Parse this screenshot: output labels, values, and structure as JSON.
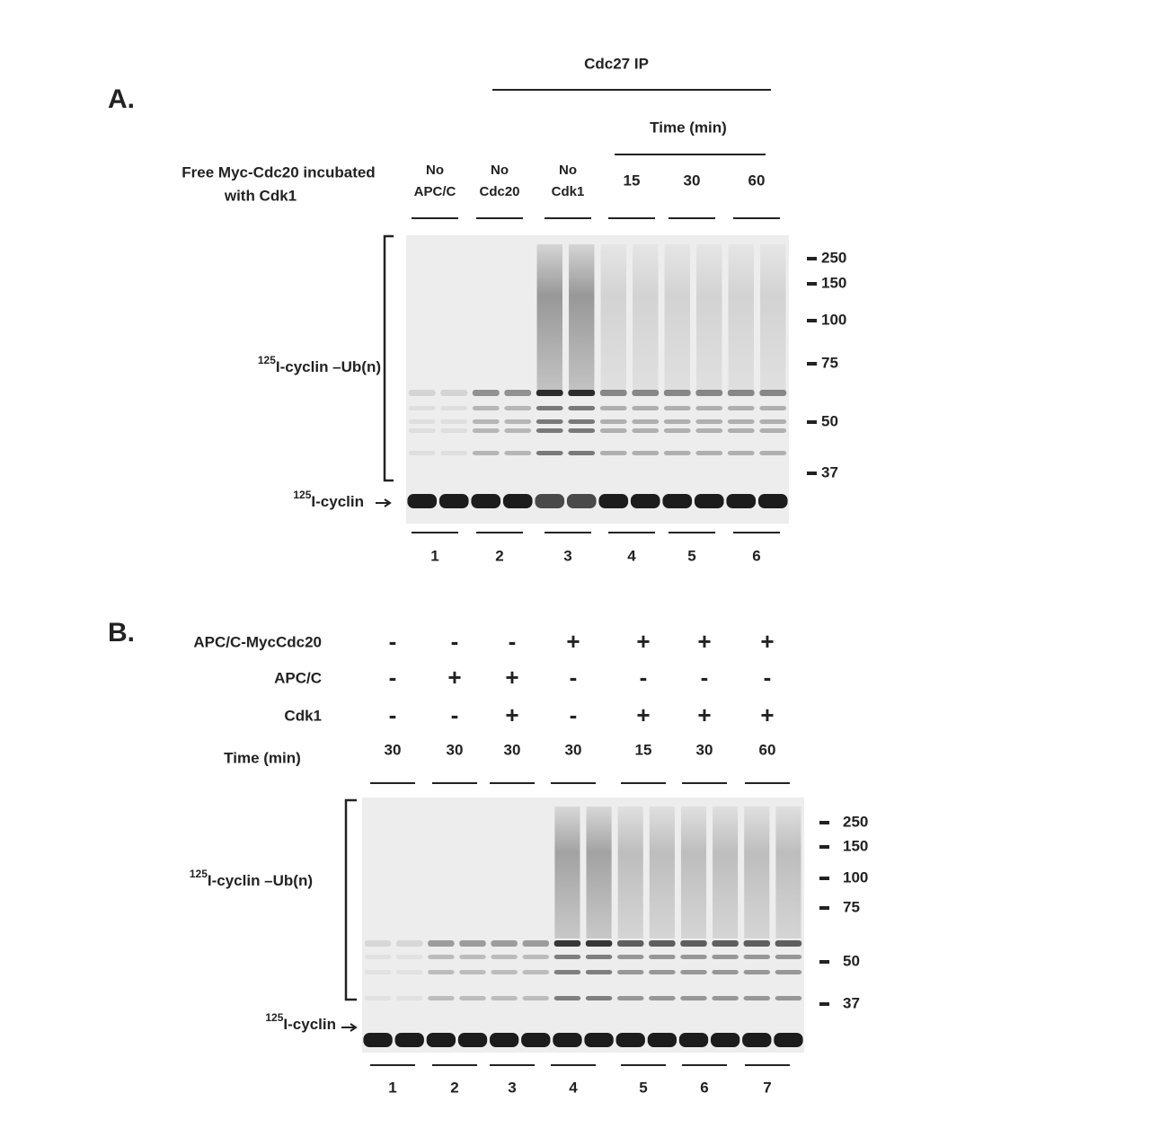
{
  "panel_a": {
    "label": "A.",
    "header": "Cdc27 IP",
    "time_header": "Time (min)",
    "row_label": [
      "Free Myc-Cdc20 incubated",
      "with Cdk1"
    ],
    "conditions": [
      [
        "No",
        "APC/C"
      ],
      [
        "No",
        "Cdc20"
      ],
      [
        "No",
        "Cdk1"
      ],
      [
        "15"
      ],
      [
        "30"
      ],
      [
        "60"
      ]
    ],
    "lanes": [
      "1",
      "2",
      "3",
      "4",
      "5",
      "6"
    ],
    "markers": [
      "250",
      "150",
      "100",
      "75",
      "50",
      "37"
    ],
    "product_label": {
      "sup": "125",
      "text": "I-cyclin –Ub(n)"
    },
    "substrate_label": {
      "sup": "125",
      "text": "I-cyclin"
    }
  },
  "panel_b": {
    "label": "B.",
    "rows": [
      {
        "label": "APC/C-MycCdc20",
        "values": [
          "-",
          "-",
          "-",
          "+",
          "+",
          "+",
          "+"
        ]
      },
      {
        "label": "APC/C",
        "values": [
          "-",
          "+",
          "+",
          "-",
          "-",
          "-",
          "-"
        ]
      },
      {
        "label": "Cdk1",
        "values": [
          "-",
          "-",
          "+",
          "-",
          "+",
          "+",
          "+"
        ]
      },
      {
        "label": "Time (min)",
        "values": [
          "30",
          "30",
          "30",
          "30",
          "15",
          "30",
          "60"
        ]
      }
    ],
    "lanes": [
      "1",
      "2",
      "3",
      "4",
      "5",
      "6",
      "7"
    ],
    "markers": [
      "250",
      "150",
      "100",
      "75",
      "50",
      "37"
    ],
    "product_label": {
      "sup": "125",
      "text": "I-cyclin –Ub(n)"
    },
    "substrate_label": {
      "sup": "125",
      "text": "I-cyclin"
    }
  }
}
